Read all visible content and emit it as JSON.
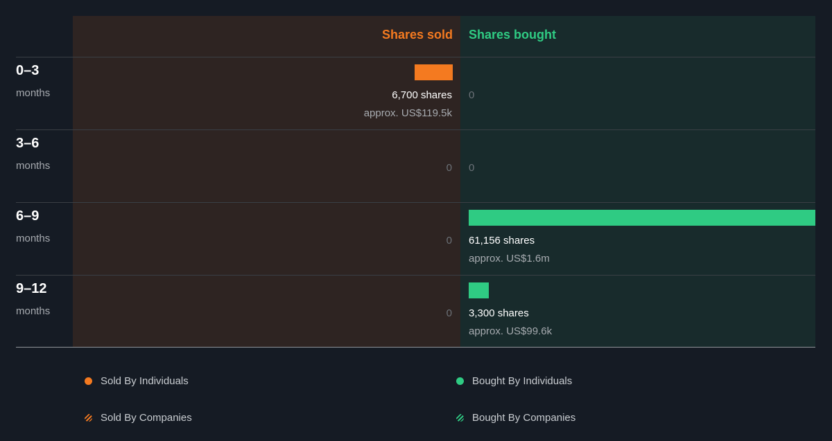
{
  "colors": {
    "sold": "#f47a20",
    "bought": "#2fcb83",
    "background": "#151b24",
    "sold_panel": "#2e2422",
    "bought_panel": "#182b2c"
  },
  "headers": {
    "sold": "Shares sold",
    "bought": "Shares bought"
  },
  "chart_data": {
    "type": "bar",
    "orientation": "horizontal-diverging",
    "categories": [
      "0–3 months",
      "3–6 months",
      "6–9 months",
      "9–12 months"
    ],
    "series": [
      {
        "name": "Shares sold",
        "values": [
          6700,
          0,
          0,
          0
        ]
      },
      {
        "name": "Shares bought",
        "values": [
          0,
          0,
          61156,
          3300
        ]
      }
    ]
  },
  "rows": [
    {
      "period": "0–3",
      "unit": "months",
      "sold": {
        "shares": 6700,
        "amount": "6,700 shares",
        "approx": "approx. US$119.5k",
        "zero": ""
      },
      "bought": {
        "shares": 0,
        "amount": "",
        "approx": "",
        "zero": "0"
      }
    },
    {
      "period": "3–6",
      "unit": "months",
      "sold": {
        "shares": 0,
        "amount": "",
        "approx": "",
        "zero": "0"
      },
      "bought": {
        "shares": 0,
        "amount": "",
        "approx": "",
        "zero": "0"
      }
    },
    {
      "period": "6–9",
      "unit": "months",
      "sold": {
        "shares": 0,
        "amount": "",
        "approx": "",
        "zero": "0"
      },
      "bought": {
        "shares": 61156,
        "amount": "61,156 shares",
        "approx": "approx. US$1.6m",
        "zero": ""
      }
    },
    {
      "period": "9–12",
      "unit": "months",
      "sold": {
        "shares": 0,
        "amount": "",
        "approx": "",
        "zero": "0"
      },
      "bought": {
        "shares": 3300,
        "amount": "3,300 shares",
        "approx": "approx. US$99.6k",
        "zero": ""
      }
    }
  ],
  "legend": [
    {
      "label": "Sold By Individuals",
      "icon": "solid-dot",
      "color": "#f47a20"
    },
    {
      "label": "Bought By Individuals",
      "icon": "solid-dot",
      "color": "#2fcb83"
    },
    {
      "label": "Sold By Companies",
      "icon": "striped-dot",
      "color": "#f47a20"
    },
    {
      "label": "Bought By Companies",
      "icon": "striped-dot",
      "color": "#2fcb83"
    }
  ]
}
